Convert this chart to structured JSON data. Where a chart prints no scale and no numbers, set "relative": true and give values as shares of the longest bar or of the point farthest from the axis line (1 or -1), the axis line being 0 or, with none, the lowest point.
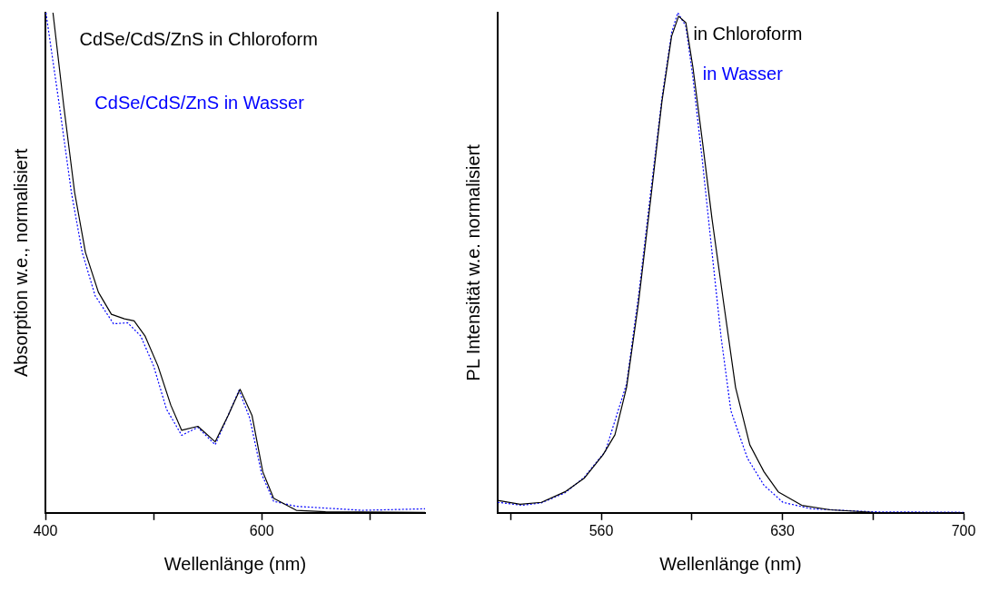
{
  "chart_data": [
    {
      "type": "line",
      "relative": true,
      "xlabel": "Wellenlänge (nm)",
      "ylabel": "Absorption w.e., normalisiert",
      "xlim": [
        400,
        751
      ],
      "xticks": [
        400,
        {
          "value": 500,
          "label": null
        },
        600,
        {
          "value": 700,
          "label": null
        }
      ],
      "grid": false,
      "series": [
        {
          "name": "CdSe/CdS/ZnS in Chloroform",
          "color": "#000000",
          "line_style": "solid",
          "x": [
            407,
            417,
            427,
            437,
            449,
            461,
            473,
            482,
            492,
            504,
            516,
            526,
            541,
            557,
            569,
            580,
            591,
            601,
            611,
            632,
            659,
            751
          ],
          "values": [
            1.0,
            0.813,
            0.641,
            0.521,
            0.441,
            0.397,
            0.388,
            0.384,
            0.354,
            0.294,
            0.215,
            0.165,
            0.173,
            0.142,
            0.195,
            0.247,
            0.195,
            0.082,
            0.029,
            0.005,
            0.002,
            0.001
          ]
        },
        {
          "name": "CdSe/CdS/ZnS in Wasser",
          "color": "#0000ff",
          "line_style": "dotted",
          "x": [
            400.5,
            413,
            424,
            434,
            446,
            463,
            476,
            488,
            500,
            512,
            526,
            541,
            557,
            569,
            579,
            589,
            600,
            611,
            632,
            693,
            751
          ],
          "values": [
            1.0,
            0.813,
            0.641,
            0.521,
            0.434,
            0.378,
            0.38,
            0.354,
            0.294,
            0.207,
            0.155,
            0.171,
            0.136,
            0.195,
            0.245,
            0.189,
            0.077,
            0.023,
            0.013,
            0.005,
            0.008
          ]
        }
      ]
    },
    {
      "type": "line",
      "relative": true,
      "xlabel": "Wellenlänge (nm)",
      "ylabel": "PL Intensität w.e. normalisiert",
      "xlim": [
        520,
        700
      ],
      "xticks": [
        {
          "value": 525,
          "label": null
        },
        560,
        {
          "value": 595,
          "label": null
        },
        630,
        {
          "value": 665,
          "label": null
        },
        700
      ],
      "grid": false,
      "series": [
        {
          "name": "in Chloroform",
          "color": "#000000",
          "line_style": "solid",
          "x": [
            520,
            528.7,
            536.9,
            546,
            553.4,
            560.7,
            565.3,
            569.8,
            574.4,
            579,
            583.5,
            587.2,
            589.9,
            592.7,
            595.4,
            599.1,
            602.8,
            607.3,
            611.9,
            617.4,
            622.9,
            628.4,
            637.5,
            648.5,
            665,
            700
          ],
          "values": [
            0.025,
            0.017,
            0.021,
            0.042,
            0.069,
            0.116,
            0.156,
            0.251,
            0.42,
            0.622,
            0.824,
            0.953,
            0.993,
            0.98,
            0.892,
            0.743,
            0.588,
            0.42,
            0.251,
            0.136,
            0.082,
            0.042,
            0.015,
            0.006,
            0.001,
            0
          ]
        },
        {
          "name": "in Wasser",
          "color": "#0000ff",
          "line_style": "dotted",
          "x": [
            520,
            529.5,
            537,
            546,
            553.4,
            561.6,
            569.8,
            574.4,
            579,
            583.5,
            587.2,
            589.6,
            592.7,
            595.4,
            599.1,
            602.8,
            606.3,
            610.1,
            616.5,
            622.9,
            630.2,
            641.2,
            665,
            700
          ],
          "values": [
            0.021,
            0.015,
            0.02,
            0.04,
            0.071,
            0.123,
            0.258,
            0.433,
            0.636,
            0.831,
            0.96,
            1.0,
            0.973,
            0.872,
            0.703,
            0.521,
            0.352,
            0.204,
            0.109,
            0.055,
            0.021,
            0.008,
            0.002,
            0.001
          ]
        }
      ]
    }
  ]
}
